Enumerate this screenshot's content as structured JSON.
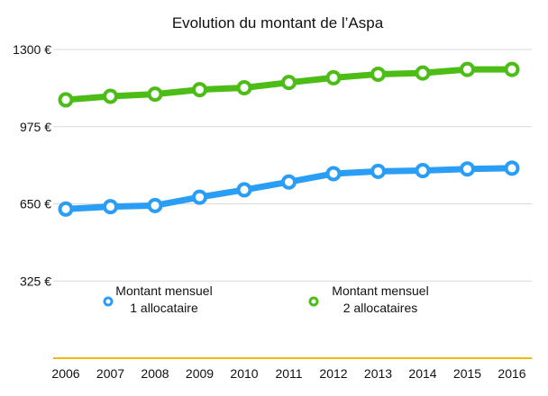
{
  "chart_data": {
    "type": "line",
    "title": "Evolution du montant de l’Aspa",
    "xlabel": "",
    "ylabel": "",
    "x": [
      "2006",
      "2007",
      "2008",
      "2009",
      "2010",
      "2011",
      "2012",
      "2013",
      "2014",
      "2015",
      "2016"
    ],
    "yticks": [
      {
        "value": 325,
        "label": "325 €"
      },
      {
        "value": 650,
        "label": "650 €"
      },
      {
        "value": 975,
        "label": "975 €"
      },
      {
        "value": 1300,
        "label": "1300 €"
      }
    ],
    "ylim": [
      0,
      1300
    ],
    "grid": true,
    "legend_position": "inside-center",
    "baseline_color": "#f5b800",
    "series": [
      {
        "name_lines": [
          "Montant mensuel",
          "1 allocataire"
        ],
        "color": "#2a9df4",
        "values": [
          628,
          638,
          643,
          678,
          709,
          742,
          777,
          787,
          790,
          797,
          800
        ]
      },
      {
        "name_lines": [
          "Montant mensuel",
          "2 allocataires"
        ],
        "color": "#4cbd16",
        "values": [
          1088,
          1103,
          1112,
          1131,
          1139,
          1161,
          1181,
          1196,
          1201,
          1216,
          1216
        ]
      }
    ]
  }
}
